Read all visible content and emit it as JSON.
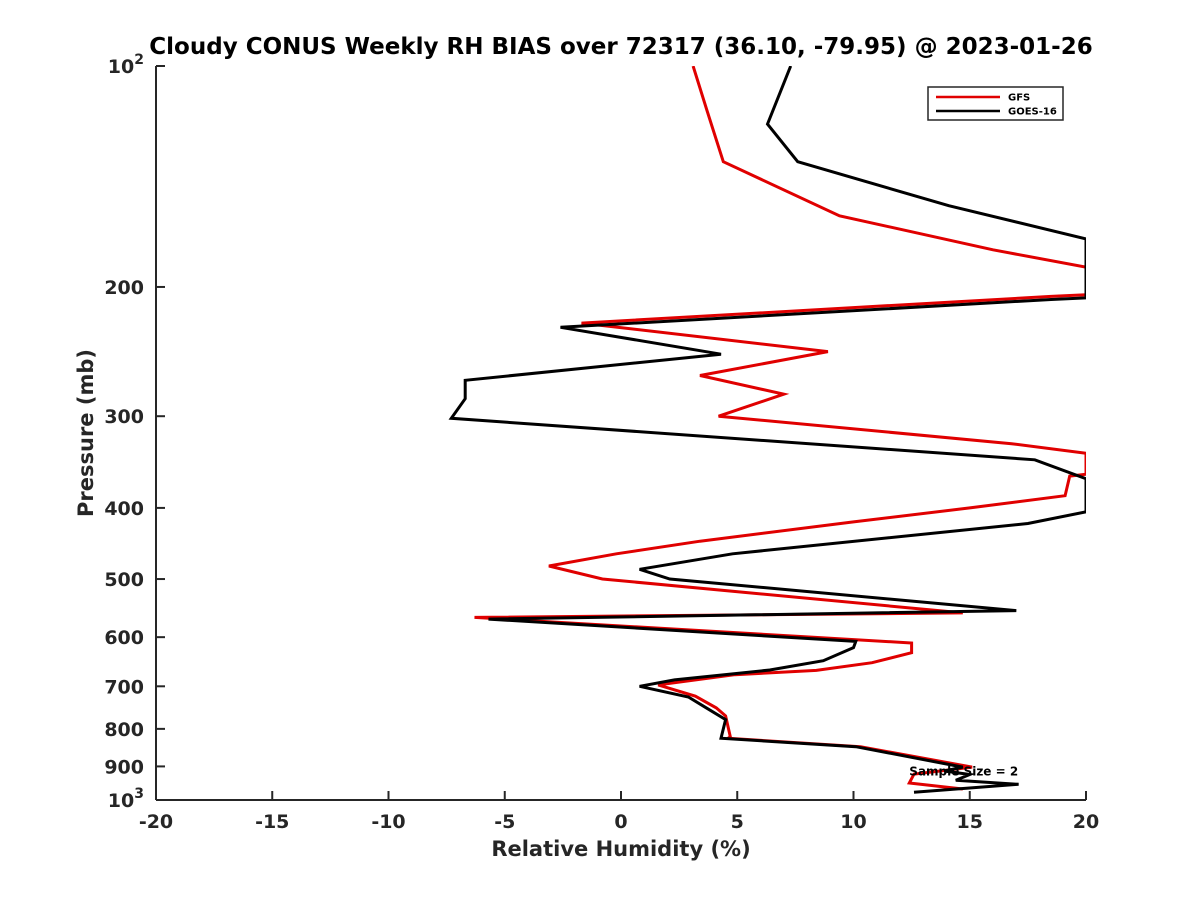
{
  "chart_data": {
    "type": "line",
    "title": "Cloudy CONUS Weekly RH BIAS over 72317 (36.10, -79.95) @ 2023-01-26",
    "xlabel": "Relative Humidity (%)",
    "ylabel": "Pressure (mb)",
    "xlim": [
      -20,
      20
    ],
    "ylim": [
      100,
      1000
    ],
    "yscale": "log",
    "y_reversed": true,
    "grid": false,
    "legend_position": "top-right",
    "x_ticks": [
      "-20",
      "-15",
      "-10",
      "-5",
      "0",
      "5",
      "10",
      "15",
      "20"
    ],
    "x_tick_values": [
      -20,
      -15,
      -10,
      -5,
      0,
      5,
      10,
      15,
      20
    ],
    "y_ticks": [
      {
        "value": 100,
        "base": "10",
        "exp": "2"
      },
      {
        "value": 200,
        "label": "200"
      },
      {
        "value": 300,
        "label": "300"
      },
      {
        "value": 400,
        "label": "400"
      },
      {
        "value": 500,
        "label": "500"
      },
      {
        "value": 600,
        "label": "600"
      },
      {
        "value": 700,
        "label": "700"
      },
      {
        "value": 800,
        "label": "800"
      },
      {
        "value": 900,
        "label": "900"
      },
      {
        "value": 1000,
        "base": "10",
        "exp": "3"
      }
    ],
    "series": [
      {
        "name": "GFS",
        "color": "#e00000",
        "points": [
          [
            3.1,
            100
          ],
          [
            3.7,
            115
          ],
          [
            4.4,
            135
          ],
          [
            9.4,
            160
          ],
          [
            16.0,
            178
          ],
          [
            20.0,
            188
          ],
          [
            20.0,
            205
          ],
          [
            18.5,
            206
          ],
          [
            -1.7,
            224
          ],
          [
            8.9,
            245
          ],
          [
            3.4,
            264
          ],
          [
            7.0,
            280
          ],
          [
            4.2,
            300
          ],
          [
            16.8,
            327
          ],
          [
            20.0,
            337
          ],
          [
            20.0,
            360
          ],
          [
            19.3,
            362
          ],
          [
            19.1,
            385
          ],
          [
            15.0,
            400
          ],
          [
            10.0,
            418
          ],
          [
            3.4,
            444
          ],
          [
            -0.2,
            462
          ],
          [
            -3.1,
            480
          ],
          [
            -0.8,
            500
          ],
          [
            14.7,
            556
          ],
          [
            -6.3,
            564
          ],
          [
            12.5,
            611
          ],
          [
            12.5,
            630
          ],
          [
            10.8,
            650
          ],
          [
            8.4,
            666
          ],
          [
            4.9,
            675
          ],
          [
            1.6,
            697
          ],
          [
            3.2,
            722
          ],
          [
            4.1,
            749
          ],
          [
            4.5,
            768
          ],
          [
            4.7,
            820
          ],
          [
            4.6,
            824
          ],
          [
            10.3,
            846
          ],
          [
            15.1,
            902
          ],
          [
            12.6,
            922
          ],
          [
            12.4,
            948
          ],
          [
            14.7,
            966
          ]
        ]
      },
      {
        "name": "GOES-16",
        "color": "#000000",
        "points": [
          [
            7.3,
            100
          ],
          [
            6.3,
            120
          ],
          [
            7.6,
            135
          ],
          [
            14.1,
            155
          ],
          [
            20.0,
            172
          ],
          [
            20.0,
            207
          ],
          [
            18.5,
            208
          ],
          [
            -2.6,
            227
          ],
          [
            4.3,
            247
          ],
          [
            -6.7,
            268
          ],
          [
            -6.7,
            284
          ],
          [
            -7.3,
            302
          ],
          [
            17.8,
            344
          ],
          [
            20.0,
            365
          ],
          [
            20.0,
            405
          ],
          [
            17.5,
            420
          ],
          [
            4.8,
            462
          ],
          [
            0.8,
            485
          ],
          [
            2.1,
            500
          ],
          [
            17.0,
            552
          ],
          [
            -5.7,
            567
          ],
          [
            10.1,
            608
          ],
          [
            10.0,
            620
          ],
          [
            8.7,
            646
          ],
          [
            6.4,
            665
          ],
          [
            2.3,
            686
          ],
          [
            0.8,
            700
          ],
          [
            2.9,
            724
          ],
          [
            3.7,
            750
          ],
          [
            4.5,
            777
          ],
          [
            4.3,
            824
          ],
          [
            10.1,
            846
          ],
          [
            14.7,
            902
          ],
          [
            13.9,
            913
          ],
          [
            15.0,
            923
          ],
          [
            14.4,
            940
          ],
          [
            17.1,
            952
          ],
          [
            12.6,
            976
          ]
        ]
      }
    ],
    "annotations": [
      {
        "text": "Sample Size = 2",
        "x": 12.4,
        "y": 915
      }
    ]
  }
}
